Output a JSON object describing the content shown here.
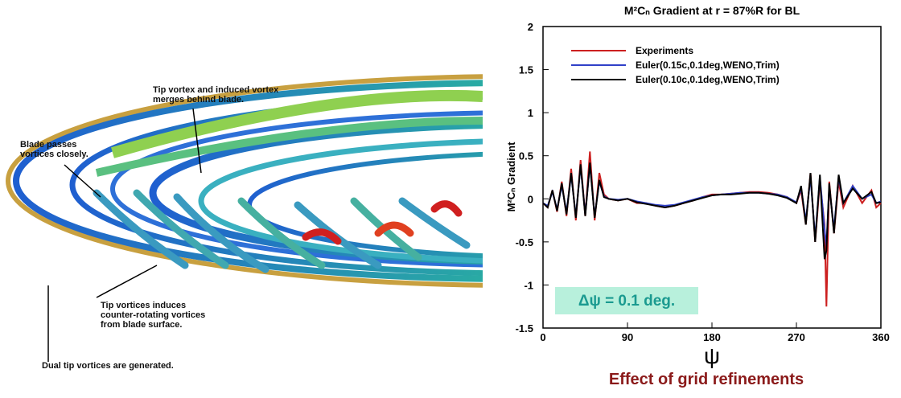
{
  "annotations": [
    {
      "lines": [
        "Tip vortex and induced vortex",
        "merges behind blade."
      ]
    },
    {
      "lines": [
        "Blade passes",
        "vortices closely."
      ]
    },
    {
      "lines": [
        "Tip vortices induces",
        "counter-rotating vortices",
        "from blade surface."
      ]
    },
    {
      "lines": [
        "Dual tip vortices are generated."
      ]
    }
  ],
  "chart_data": {
    "type": "line",
    "title": "M²Cₙ Gradient at r = 87%R for BL",
    "x_label": "ψ",
    "y_label": "M²Cₙ Gradient",
    "caption": "Effect of grid refinements",
    "note": "Δψ = 0.1 deg.",
    "xlim": [
      0,
      360
    ],
    "xticks": [
      0,
      90,
      180,
      270,
      360
    ],
    "ylim": [
      -1.5,
      2
    ],
    "yticks": [
      -1.5,
      -1,
      -0.5,
      0,
      0.5,
      1,
      1.5,
      2
    ],
    "legend": "upper left",
    "x": [
      0,
      5,
      10,
      15,
      20,
      25,
      30,
      35,
      40,
      45,
      50,
      55,
      60,
      65,
      70,
      80,
      90,
      100,
      110,
      120,
      130,
      140,
      150,
      160,
      170,
      180,
      190,
      200,
      210,
      220,
      230,
      240,
      250,
      260,
      270,
      275,
      280,
      285,
      290,
      295,
      300,
      302,
      305,
      310,
      315,
      320,
      330,
      340,
      350,
      355,
      360
    ],
    "series": [
      {
        "name": "Experiments",
        "color": "#cc2020",
        "values": [
          -0.05,
          -0.1,
          0.1,
          -0.15,
          0.2,
          -0.2,
          0.35,
          -0.25,
          0.45,
          -0.2,
          0.55,
          -0.25,
          0.3,
          0.05,
          0.0,
          -0.02,
          0.0,
          -0.05,
          -0.05,
          -0.08,
          -0.1,
          -0.08,
          -0.05,
          -0.02,
          0.02,
          0.05,
          0.05,
          0.06,
          0.07,
          0.08,
          0.08,
          0.07,
          0.05,
          0.02,
          -0.05,
          0.1,
          -0.3,
          0.3,
          -0.5,
          0.2,
          -0.3,
          -1.25,
          0.2,
          -0.4,
          0.2,
          -0.1,
          0.15,
          -0.05,
          0.1,
          -0.1,
          -0.05
        ]
      },
      {
        "name": "Euler(0.15c,0.1deg,WENO,Trim)",
        "color": "#3040c8",
        "values": [
          -0.05,
          -0.08,
          0.08,
          -0.12,
          0.15,
          -0.15,
          0.28,
          -0.2,
          0.38,
          -0.18,
          0.4,
          -0.2,
          0.2,
          0.03,
          0.0,
          -0.01,
          0.0,
          -0.03,
          -0.05,
          -0.07,
          -0.08,
          -0.07,
          -0.04,
          -0.01,
          0.02,
          0.04,
          0.05,
          0.06,
          0.07,
          0.07,
          0.07,
          0.06,
          0.05,
          0.02,
          -0.04,
          0.12,
          -0.25,
          0.25,
          -0.45,
          0.25,
          -0.35,
          -0.55,
          0.15,
          -0.35,
          0.25,
          -0.05,
          0.15,
          0.0,
          0.05,
          -0.05,
          -0.03
        ]
      },
      {
        "name": "Euler(0.10c,0.1deg,WENO,Trim)",
        "color": "#000000",
        "values": [
          -0.05,
          -0.1,
          0.1,
          -0.14,
          0.18,
          -0.18,
          0.3,
          -0.22,
          0.4,
          -0.2,
          0.42,
          -0.22,
          0.22,
          0.02,
          0.0,
          -0.02,
          0.0,
          -0.04,
          -0.06,
          -0.08,
          -0.1,
          -0.08,
          -0.05,
          -0.02,
          0.01,
          0.04,
          0.05,
          0.05,
          0.06,
          0.07,
          0.07,
          0.06,
          0.04,
          0.01,
          -0.05,
          0.15,
          -0.3,
          0.3,
          -0.5,
          0.28,
          -0.7,
          -0.6,
          0.18,
          -0.4,
          0.28,
          -0.05,
          0.12,
          0.0,
          0.08,
          -0.05,
          -0.04
        ]
      }
    ]
  }
}
